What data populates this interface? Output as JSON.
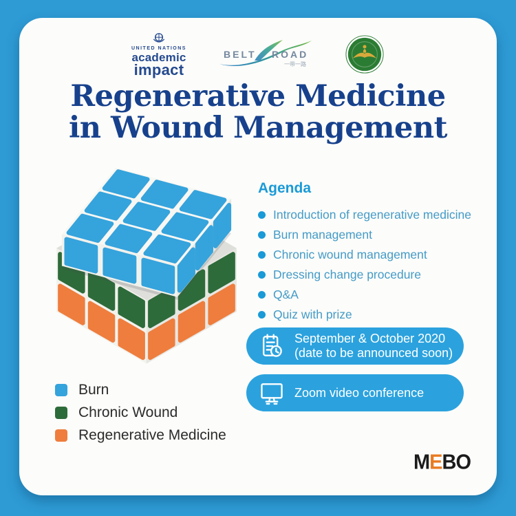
{
  "theme": {
    "frame_bg": "#2e9bd5",
    "button_color": "#2ba2de",
    "agenda_accent": "#1a9ad7",
    "agenda_text": "#449bc7",
    "title_color": "#17418c"
  },
  "logos": {
    "un_academic_impact": {
      "small_caps": "UNITED NATIONS",
      "word1": "academic",
      "word2": "impact"
    },
    "belt_and_road": {
      "word1": "BELT",
      "word2": "ROAD",
      "subtitle": "一带一路"
    }
  },
  "title": {
    "line1": "Regenerative Medicine",
    "line2": "in Wound Management"
  },
  "agenda": {
    "heading": "Agenda",
    "items": [
      "Introduction of regenerative medicine",
      "Burn management",
      "Chronic wound management",
      "Dressing change procedure",
      "Q&A",
      "Quiz with prize"
    ]
  },
  "info_buttons": [
    {
      "icon": "calendar-clock-icon",
      "line1": "September & October 2020",
      "line2": "(date to be announced soon)"
    },
    {
      "icon": "monitor-icon",
      "line1": "Zoom video conference"
    }
  ],
  "legend": [
    {
      "label": "Burn",
      "color": "#35a3dc"
    },
    {
      "label": "Chronic Wound",
      "color": "#2e6b3a"
    },
    {
      "label": "Regenerative Medicine",
      "color": "#ef7d3d"
    }
  ],
  "cube": {
    "top_layer": "Burn",
    "middle_layer": "Chronic Wound",
    "bottom_layer": "Regenerative Medicine"
  },
  "brand": {
    "name": "MEBO",
    "letters": [
      {
        "ch": "M",
        "color": "#1b1b1b"
      },
      {
        "ch": "E",
        "color": "#e87b22"
      },
      {
        "ch": "B",
        "color": "#1b1b1b"
      },
      {
        "ch": "O",
        "color": "#1b1b1b"
      }
    ]
  }
}
